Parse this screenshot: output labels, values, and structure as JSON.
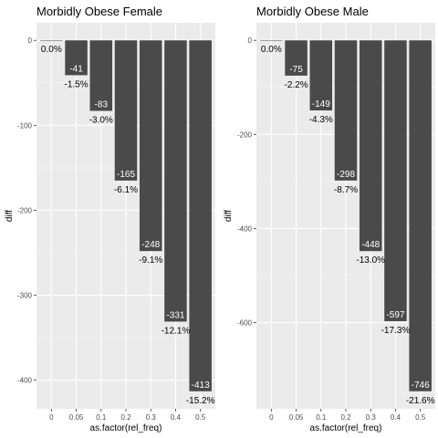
{
  "chart_data": [
    {
      "type": "bar",
      "title": "Morbidly Obese Female",
      "xlabel": "as.factor(rel_freq)",
      "ylabel": "diff",
      "categories": [
        "0",
        "0.05",
        "0.1",
        "0.2",
        "0.3",
        "0.4",
        "0.5"
      ],
      "values": [
        0,
        -41,
        -83,
        -165,
        -248,
        -331,
        -413
      ],
      "value_labels": [
        "",
        "-41",
        "-83",
        "-165",
        "-248",
        "-331",
        "-413"
      ],
      "pct_labels": [
        "0.0%",
        "-1.5%",
        "-3.0%",
        "-6.1%",
        "-9.1%",
        "-12.1%",
        "-15.2%"
      ],
      "yticks": [
        0,
        -100,
        -200,
        -300,
        -400
      ],
      "ytick_labels": [
        "0",
        "-100",
        "-200",
        "-300",
        "-400"
      ],
      "ylim": [
        -433.65,
        20.65
      ],
      "grid": true,
      "bar_color": "#4a4a4a",
      "panel_color": "#ebebeb"
    },
    {
      "type": "bar",
      "title": "Morbidly Obese Male",
      "xlabel": "as.factor(rel_freq)",
      "ylabel": "diff",
      "categories": [
        "0",
        "0.05",
        "0.1",
        "0.2",
        "0.3",
        "0.4",
        "0.5"
      ],
      "values": [
        0,
        -75,
        -149,
        -298,
        -448,
        -597,
        -746
      ],
      "value_labels": [
        "",
        "-75",
        "-149",
        "-298",
        "-448",
        "-597",
        "-746"
      ],
      "pct_labels": [
        "0.0%",
        "-2.2%",
        "-4.3%",
        "-8.7%",
        "-13.0%",
        "-17.3%",
        "-21.6%"
      ],
      "yticks": [
        0,
        -200,
        -400,
        -600
      ],
      "ytick_labels": [
        "0",
        "-200",
        "-400",
        "-600"
      ],
      "ylim": [
        -783.3,
        37.3
      ],
      "grid": true,
      "bar_color": "#4a4a4a",
      "panel_color": "#ebebeb"
    }
  ]
}
